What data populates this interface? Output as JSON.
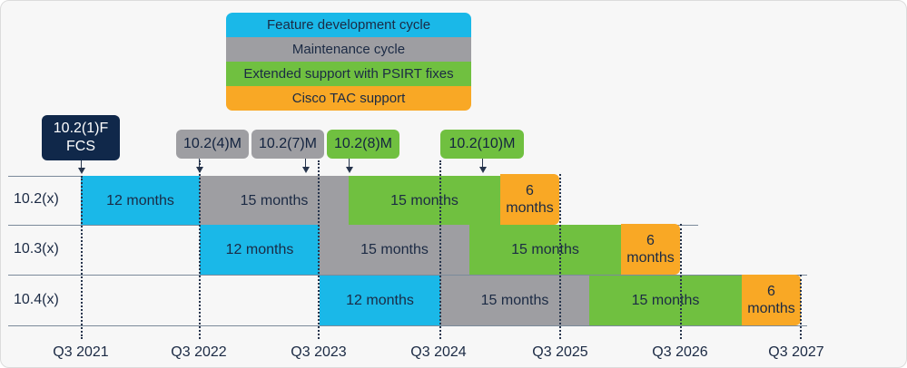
{
  "colors": {
    "feature": "#1ab8e8",
    "maintenance": "#9e9ea2",
    "extended": "#70c040",
    "tac": "#f9a825",
    "fcs": "#10284a",
    "text": "#1b2a44"
  },
  "legend": [
    {
      "label": "Feature development cycle",
      "color": "#1ab8e8"
    },
    {
      "label": "Maintenance cycle",
      "color": "#9e9ea2"
    },
    {
      "label": "Extended support with PSIRT fixes",
      "color": "#70c040"
    },
    {
      "label": "Cisco TAC support",
      "color": "#f9a825"
    }
  ],
  "releases": [
    {
      "label_line1": "10.2(1)F",
      "label_line2": "FCS",
      "color": "#10284a"
    },
    {
      "label": "10.2(4)M",
      "color": "#9e9ea2"
    },
    {
      "label": "10.2(7)M",
      "color": "#9e9ea2"
    },
    {
      "label": "10.2(8)M",
      "color": "#70c040"
    },
    {
      "label": "10.2(10)M",
      "color": "#70c040"
    }
  ],
  "rows": [
    {
      "label": "10.2(x)",
      "segments": [
        {
          "text": "12 months",
          "phase": "feature"
        },
        {
          "text": "15 months",
          "phase": "maintenance"
        },
        {
          "text": "15 months",
          "phase": "extended"
        },
        {
          "text": "6 months",
          "phase": "tac"
        }
      ]
    },
    {
      "label": "10.3(x)",
      "segments": [
        {
          "text": "12 months",
          "phase": "feature"
        },
        {
          "text": "15 months",
          "phase": "maintenance"
        },
        {
          "text": "15 months",
          "phase": "extended"
        },
        {
          "text": "6 months",
          "phase": "tac"
        }
      ]
    },
    {
      "label": "10.4(x)",
      "segments": [
        {
          "text": "12 months",
          "phase": "feature"
        },
        {
          "text": "15 months",
          "phase": "maintenance"
        },
        {
          "text": "15 months",
          "phase": "extended"
        },
        {
          "text": "6 months",
          "phase": "tac"
        }
      ]
    }
  ],
  "axis": [
    "Q3 2021",
    "Q3 2022",
    "Q3 2023",
    "Q3 2024",
    "Q3 2025",
    "Q3 2026",
    "Q3 2027"
  ]
}
